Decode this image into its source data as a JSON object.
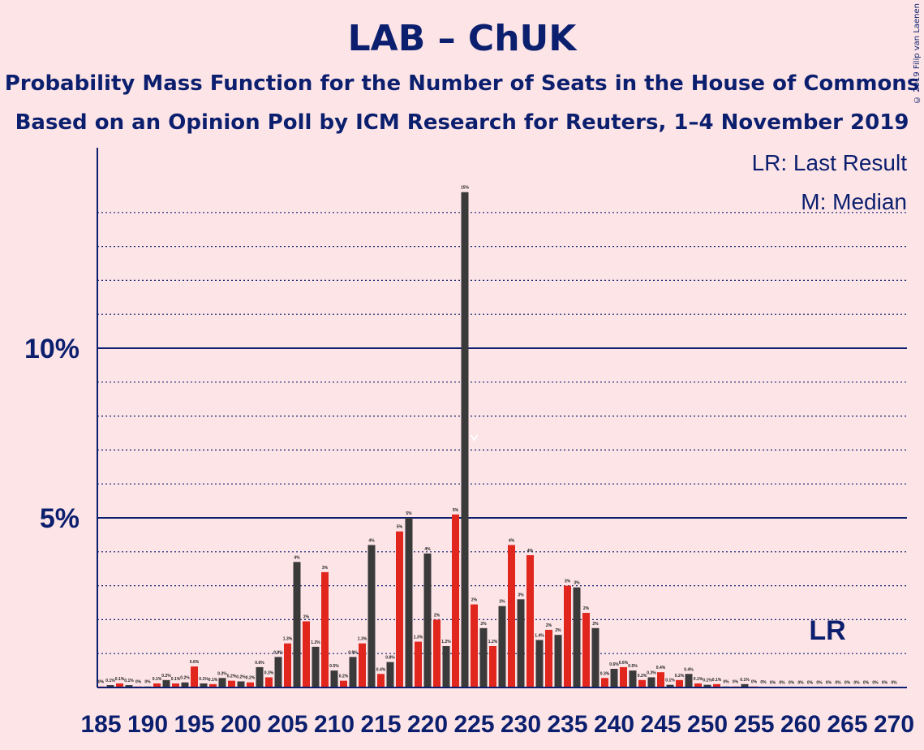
{
  "title": "LAB – ChUK",
  "subtitle1": "Probability Mass Function for the Number of Seats in the House of Commons",
  "subtitle2": "Based on an Opinion Poll by ICM Research for Reuters, 1–4 November 2019",
  "copyright": "© 2019 Filip van Laenen",
  "legend": {
    "lr": "LR: Last Result",
    "m": "M: Median"
  },
  "lr_label": "LR",
  "colors": {
    "background": "#fde4e7",
    "axis": "#0b1f6e",
    "bar_dark": "#3a3a3a",
    "bar_red": "#e0261d"
  },
  "chart_data": {
    "type": "bar",
    "xlabel": "",
    "ylabel": "",
    "ylim": [
      0,
      15
    ],
    "y_ticks": [
      "5%",
      "10%"
    ],
    "x_ticks": [
      "185",
      "190",
      "195",
      "200",
      "205",
      "210",
      "215",
      "220",
      "225",
      "230",
      "235",
      "240",
      "245",
      "250",
      "255",
      "260",
      "265",
      "270"
    ],
    "median": 225,
    "last_result": 262,
    "x": [
      185,
      186,
      187,
      188,
      189,
      190,
      191,
      192,
      193,
      194,
      195,
      196,
      197,
      198,
      199,
      200,
      201,
      202,
      203,
      204,
      205,
      206,
      207,
      208,
      209,
      210,
      211,
      212,
      213,
      214,
      215,
      216,
      217,
      218,
      219,
      220,
      221,
      222,
      223,
      224,
      225,
      226,
      227,
      228,
      229,
      230,
      231,
      232,
      233,
      234,
      235,
      236,
      237,
      238,
      239,
      240,
      241,
      242,
      243,
      244,
      245,
      246,
      247,
      248,
      249,
      250,
      251,
      252,
      253,
      254,
      255,
      256,
      257,
      258,
      259,
      260,
      261,
      262,
      263,
      264,
      265,
      266,
      267,
      268,
      269,
      270
    ],
    "values": [
      0.03,
      0.07,
      0.12,
      0.07,
      0.03,
      0.03,
      0.12,
      0.22,
      0.12,
      0.15,
      0.62,
      0.12,
      0.1,
      0.28,
      0.2,
      0.18,
      0.15,
      0.6,
      0.3,
      0.9,
      1.3,
      3.7,
      1.95,
      1.2,
      3.4,
      0.5,
      0.2,
      0.9,
      1.3,
      4.2,
      0.4,
      0.75,
      4.6,
      5.0,
      1.35,
      3.95,
      2.0,
      1.22,
      5.1,
      14.6,
      2.45,
      1.75,
      1.22,
      2.4,
      4.2,
      2.6,
      3.9,
      1.4,
      1.7,
      1.55,
      3.0,
      2.95,
      2.2,
      1.75,
      0.28,
      0.55,
      0.6,
      0.5,
      0.22,
      0.3,
      0.45,
      0.08,
      0.22,
      0.4,
      0.12,
      0.08,
      0.1,
      0.03,
      0.03,
      0.1,
      0.03,
      0.02,
      0.01,
      0.01,
      0.01,
      0.01,
      0.01,
      0.01,
      0.01,
      0.01,
      0.01,
      0.01,
      0.01,
      0.01,
      0.01,
      0.01
    ],
    "value_labels": [
      "0%",
      "0.1%",
      "0.1%",
      "0.1%",
      "0%",
      "0%",
      "0.1%",
      "0.2%",
      "0.1%",
      "0.2%",
      "0.6%",
      "0.1%",
      "0.1%",
      "0.3%",
      "0.2%",
      "0.2%",
      "0.2%",
      "0.6%",
      "0.3%",
      "0.9%",
      "1.3%",
      "4%",
      "2%",
      "1.2%",
      "3%",
      "0.5%",
      "0.2%",
      "0.9%",
      "1.3%",
      "4%",
      "0.4%",
      "0.8%",
      "5%",
      "5%",
      "1.3%",
      "4%",
      "2%",
      "1.2%",
      "5%",
      "15%",
      "2%",
      "2%",
      "1.2%",
      "2%",
      "4%",
      "3%",
      "4%",
      "1.4%",
      "2%",
      "2%",
      "3%",
      "3%",
      "2%",
      "2%",
      "0.3%",
      "0.6%",
      "0.6%",
      "0.5%",
      "0.2%",
      "0.3%",
      "0.4%",
      "0.1%",
      "0.2%",
      "0.4%",
      "0.1%",
      "0.1%",
      "0.1%",
      "0%",
      "0%",
      "0.1%",
      "0%",
      "0%",
      "0%",
      "0%",
      "0%",
      "0%",
      "0%",
      "0%",
      "0%",
      "0%",
      "0%",
      "0%",
      "0%",
      "0%",
      "0%",
      "0%"
    ]
  }
}
